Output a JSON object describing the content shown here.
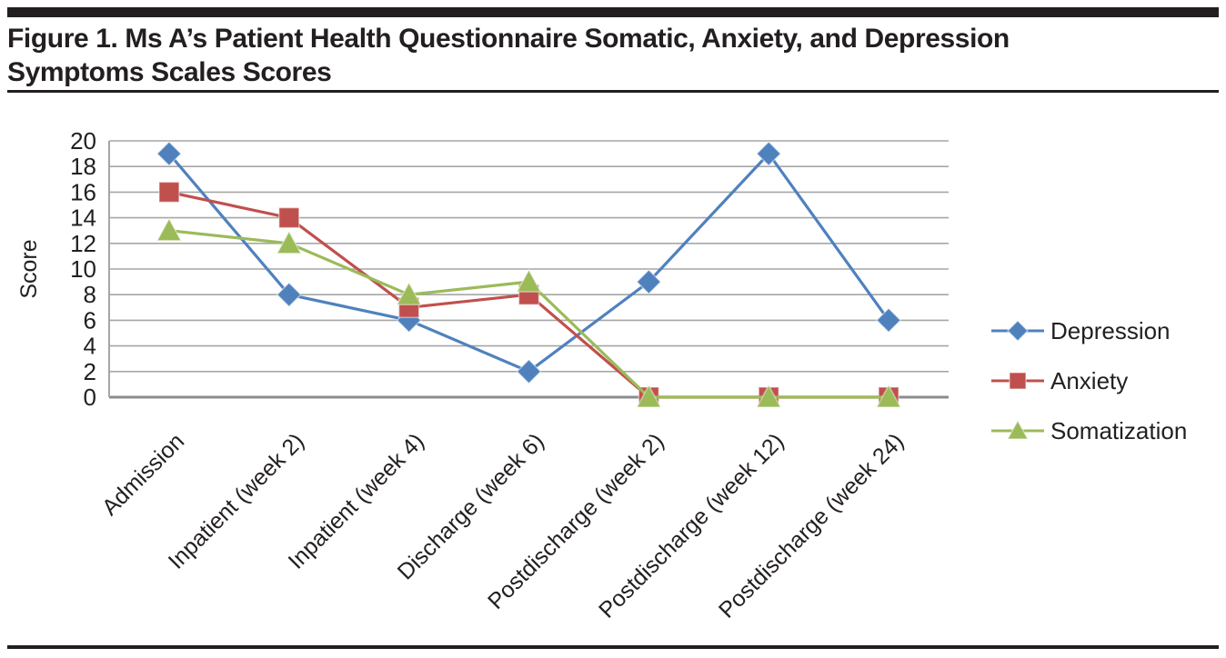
{
  "figure": {
    "title_line1": "Figure 1. Ms A’s Patient Health Questionnaire Somatic, Anxiety, and Depression",
    "title_line2": "Symptoms Scales Scores"
  },
  "chart_data": {
    "type": "line",
    "title": "Ms A’s Patient Health Questionnaire Somatic, Anxiety, and Depression Symptoms Scales Scores",
    "categories": [
      "Admission",
      "Inpatient (week 2)",
      "Inpatient (week 4)",
      "Discharge (week 6)",
      "Postdischarge (week 2)",
      "Postdischarge (week 12)",
      "Postdischarge (week 24)"
    ],
    "series": [
      {
        "name": "Depression",
        "marker": "diamond",
        "color": "#4f81bd",
        "values": [
          19,
          8,
          6,
          2,
          9,
          19,
          6
        ]
      },
      {
        "name": "Anxiety",
        "marker": "square",
        "color": "#c0504d",
        "values": [
          16,
          14,
          7,
          8,
          0,
          0,
          0
        ]
      },
      {
        "name": "Somatization",
        "marker": "triangle",
        "color": "#9bbb59",
        "values": [
          13,
          12,
          8,
          9,
          0,
          0,
          0
        ]
      }
    ],
    "xlabel": "",
    "ylabel": "Score",
    "ylim": [
      0,
      20
    ],
    "yticks": [
      0,
      2,
      4,
      6,
      8,
      10,
      12,
      14,
      16,
      18,
      20
    ],
    "grid": true,
    "legend_position": "right",
    "x_label_rotation_deg": -45
  },
  "colors": {
    "text": "#231f20",
    "gridline": "#a6a6a6",
    "baseline": "#8c8c8c",
    "axis_line": "#a6a6a6",
    "rule": "#231f20",
    "background": "#ffffff"
  }
}
